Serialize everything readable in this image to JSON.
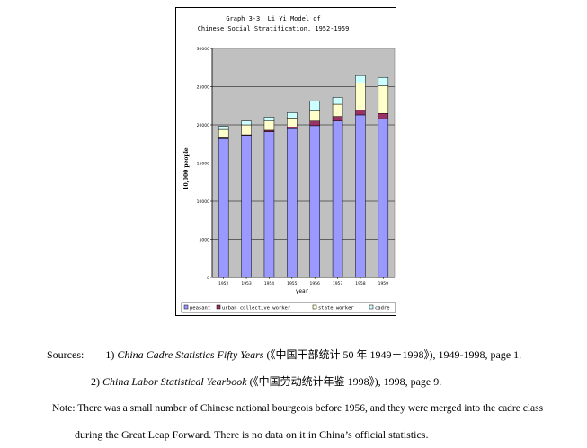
{
  "figure": {
    "title_line1": "Graph 3-3.  Li Yi Model of",
    "title_line2": "Chinese Social Stratification, 1952-1959",
    "xlabel": "year",
    "ylabel": "10,000 people"
  },
  "chart_data": {
    "type": "bar",
    "stacked": true,
    "title": "Graph 3-3.  Li Yi Model of Chinese Social Stratification, 1952-1959",
    "xlabel": "year",
    "ylabel": "10,000 people",
    "ylim": [
      0,
      30000
    ],
    "yticks": [
      0,
      5000,
      10000,
      15000,
      20000,
      25000,
      30000
    ],
    "ytick_labels": [
      "0",
      "5000",
      "10000",
      "15000",
      "20000",
      "25000",
      "30000"
    ],
    "categories": [
      "1952",
      "1953",
      "1954",
      "1955",
      "1956",
      "1957",
      "1958",
      "1959"
    ],
    "grid": true,
    "legend_position": "bottom",
    "series": [
      {
        "name": "peasant",
        "color": "#9999ff",
        "values": [
          18200,
          18600,
          19100,
          19500,
          19900,
          20500,
          21300,
          20800
        ]
      },
      {
        "name": "urban collective worker",
        "color": "#993366",
        "values": [
          100,
          100,
          200,
          200,
          600,
          600,
          650,
          700
        ]
      },
      {
        "name": "state worker",
        "color": "#ffffcc",
        "values": [
          1100,
          1300,
          1200,
          1200,
          1300,
          1600,
          3500,
          3600
        ]
      },
      {
        "name": "cadre",
        "color": "#ccffff",
        "values": [
          400,
          500,
          500,
          700,
          1300,
          900,
          1000,
          1100
        ]
      }
    ]
  },
  "notes": {
    "sources_label": "Sources:",
    "source1_num": "1)",
    "source1_title": "China Cadre Statistics Fifty Years",
    "source1_rest": "(《中国干部统计 50 年 1949－1998》), 1949-1998, page 1.",
    "source2_num": "2)",
    "source2_title": "China Labor Statistical Yearbook",
    "source2_rest": "(《中国劳动统计年鉴 1998》), 1998, page 9.",
    "note_line1": "Note: There was a small number of Chinese national bourgeois before 1956, and they were merged into the cadre class",
    "note_line2": "during the Great Leap Forward. There is no data on it in China’s official statistics."
  }
}
